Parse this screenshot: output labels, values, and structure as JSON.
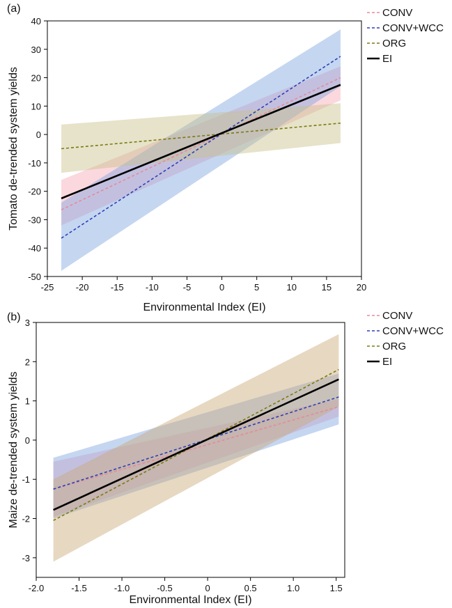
{
  "chart_data": [
    {
      "type": "line",
      "panel_label": "(a)",
      "xlabel": "Environmental Index (EI)",
      "ylabel": "Tomato de-trended system yields",
      "xlim": [
        -25,
        20
      ],
      "ylim": [
        -50,
        40
      ],
      "xticks": [
        -25,
        -20,
        -15,
        -10,
        -5,
        0,
        5,
        10,
        15,
        20
      ],
      "yticks": [
        -50,
        -40,
        -30,
        -20,
        -10,
        0,
        10,
        20,
        30,
        40
      ],
      "grid": false,
      "legend_position": "top-right outside",
      "series": [
        {
          "name": "CONV",
          "color": "#e58a9a",
          "dash": "dashed",
          "x": [
            -23,
            17
          ],
          "y": [
            -26.5,
            20
          ],
          "band_upper": [
            -16,
            24
          ],
          "band_lower": [
            -32,
            12
          ],
          "band_color": "#f7a8b5"
        },
        {
          "name": "CONV+WCC",
          "color": "#2b3fb5",
          "dash": "dashed",
          "x": [
            -23,
            17
          ],
          "y": [
            -36.5,
            27.5
          ],
          "band_upper": [
            -24,
            37
          ],
          "band_lower": [
            -48,
            17
          ],
          "band_color": "#7ea4e0"
        },
        {
          "name": "ORG",
          "color": "#7a7a10",
          "dash": "dashed",
          "x": [
            -23,
            17
          ],
          "y": [
            -5,
            4
          ],
          "band_upper": [
            3.5,
            11
          ],
          "band_lower": [
            -13.5,
            -3
          ],
          "band_color": "#c8c08a"
        },
        {
          "name": "EI",
          "color": "#000000",
          "dash": "solid",
          "x": [
            -23,
            17
          ],
          "y": [
            -22.5,
            17.5
          ]
        }
      ]
    },
    {
      "type": "line",
      "panel_label": "(b)",
      "xlabel": "Environmental Index (EI)",
      "ylabel": "Maize de-trended system yields",
      "xlim": [
        -2.0,
        1.6
      ],
      "ylim": [
        -3.5,
        3
      ],
      "xticks": [
        -2.0,
        -1.5,
        -1.0,
        -0.5,
        0,
        0.5,
        1.0,
        1.5
      ],
      "xtick_labels": [
        "-2.0",
        "-1.5",
        "-1.0",
        "-0.5",
        "0",
        "0.5",
        "1.0",
        "1.5"
      ],
      "yticks": [
        -3,
        -2,
        -1,
        0,
        1,
        2,
        3
      ],
      "grid": false,
      "legend_position": "top-right outside",
      "series": [
        {
          "name": "CONV",
          "color": "#e58a9a",
          "dash": "dashed",
          "x": [
            -1.8,
            1.53
          ],
          "y": [
            -1.25,
            0.85
          ],
          "band_upper": [
            -0.55,
            1.05
          ],
          "band_lower": [
            -1.95,
            0.6
          ],
          "band_color": "#f7a8b5"
        },
        {
          "name": "CONV+WCC",
          "color": "#2b3fb5",
          "dash": "dashed",
          "x": [
            -1.8,
            1.53
          ],
          "y": [
            -1.25,
            1.1
          ],
          "band_upper": [
            -0.45,
            1.7
          ],
          "band_lower": [
            -2.0,
            0.4
          ],
          "band_color": "#7ea4e0"
        },
        {
          "name": "ORG",
          "color": "#7a7a10",
          "dash": "dashed",
          "x": [
            -1.8,
            1.53
          ],
          "y": [
            -2.05,
            1.8
          ],
          "band_upper": [
            -1.0,
            2.7
          ],
          "band_lower": [
            -3.1,
            0.85
          ],
          "band_color": "#c9a878"
        },
        {
          "name": "EI",
          "color": "#000000",
          "dash": "solid",
          "x": [
            -1.8,
            1.53
          ],
          "y": [
            -1.78,
            1.55
          ]
        }
      ]
    }
  ]
}
